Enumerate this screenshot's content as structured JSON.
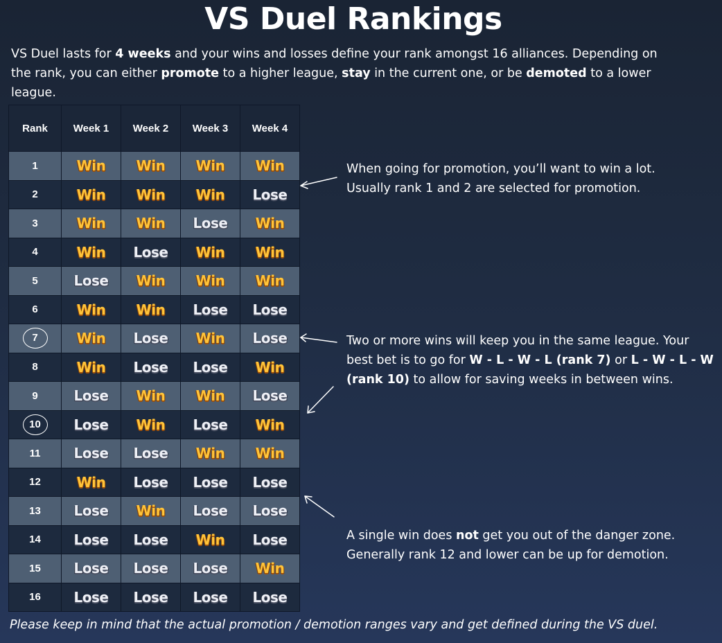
{
  "title": "VS Duel Rankings",
  "intro": {
    "t1": "VS Duel lasts for ",
    "b1": "4 weeks",
    "t2": " and your wins and losses define your rank amongst 16 alliances. Depending on the rank, you can either ",
    "b2": "promote",
    "t3": " to a higher league, ",
    "b3": "stay",
    "t4": " in the current one, or be ",
    "b4": "demoted",
    "t5": " to a lower league."
  },
  "table": {
    "headers": [
      "Rank",
      "Week 1",
      "Week 2",
      "Week 3",
      "Week 4"
    ],
    "win_label": "Win",
    "lose_label": "Lose",
    "rows": [
      {
        "rank": "1",
        "circled": false,
        "results": [
          "W",
          "W",
          "W",
          "W"
        ]
      },
      {
        "rank": "2",
        "circled": false,
        "results": [
          "W",
          "W",
          "W",
          "L"
        ]
      },
      {
        "rank": "3",
        "circled": false,
        "results": [
          "W",
          "W",
          "L",
          "W"
        ]
      },
      {
        "rank": "4",
        "circled": false,
        "results": [
          "W",
          "L",
          "W",
          "W"
        ]
      },
      {
        "rank": "5",
        "circled": false,
        "results": [
          "L",
          "W",
          "W",
          "W"
        ]
      },
      {
        "rank": "6",
        "circled": false,
        "results": [
          "W",
          "W",
          "L",
          "L"
        ]
      },
      {
        "rank": "7",
        "circled": true,
        "results": [
          "W",
          "L",
          "W",
          "L"
        ]
      },
      {
        "rank": "8",
        "circled": false,
        "results": [
          "W",
          "L",
          "L",
          "W"
        ]
      },
      {
        "rank": "9",
        "circled": false,
        "results": [
          "L",
          "W",
          "W",
          "L"
        ]
      },
      {
        "rank": "10",
        "circled": true,
        "results": [
          "L",
          "W",
          "L",
          "W"
        ]
      },
      {
        "rank": "11",
        "circled": false,
        "results": [
          "L",
          "L",
          "W",
          "W"
        ]
      },
      {
        "rank": "12",
        "circled": false,
        "results": [
          "W",
          "L",
          "L",
          "L"
        ]
      },
      {
        "rank": "13",
        "circled": false,
        "results": [
          "L",
          "W",
          "L",
          "L"
        ]
      },
      {
        "rank": "14",
        "circled": false,
        "results": [
          "L",
          "L",
          "W",
          "L"
        ]
      },
      {
        "rank": "15",
        "circled": false,
        "results": [
          "L",
          "L",
          "L",
          "W"
        ]
      },
      {
        "rank": "16",
        "circled": false,
        "results": [
          "L",
          "L",
          "L",
          "L"
        ]
      }
    ]
  },
  "notes": {
    "promotion": {
      "line1": "When going for promotion, you’ll want to win a lot.",
      "line2": "Usually rank 1 and 2 are selected for promotion."
    },
    "stay": {
      "t1": "Two or more wins will keep you in the same league. Your best bet is to go for ",
      "b1": "W - L - W - L (rank 7)",
      "t2": " or ",
      "b2": "L - W - L - W (rank 10)",
      "t3": " to allow for saving weeks in between wins."
    },
    "demotion": {
      "t1": "A single win does ",
      "b1": "not",
      "t2": " get you out of the danger zone.",
      "line2": "Generally rank 12 and lower can be up for demotion."
    }
  },
  "footer": "Please keep in mind that the actual promotion / demotion ranges vary and get defined during the VS duel.",
  "colors": {
    "win": "#ffc43a",
    "lose": "#eef0f6",
    "row_light": "#4e5f73",
    "row_dark": "#1d2a3e"
  }
}
